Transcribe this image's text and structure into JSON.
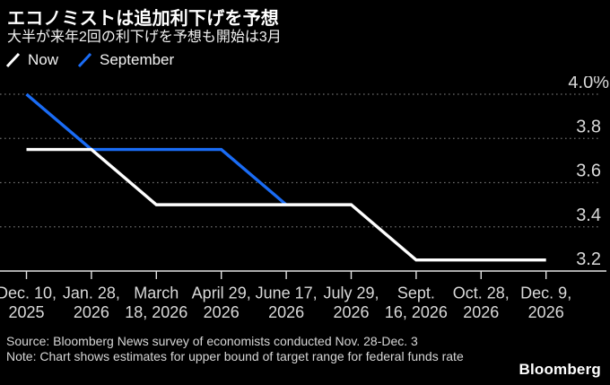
{
  "chart_data": {
    "type": "line",
    "title": "エコノミストは追加利下げを予想",
    "subtitle": "大半が来年2回の利下げを予想も開始は3月",
    "unit": "%",
    "x_categories": [
      [
        "Dec. 10,",
        "2025"
      ],
      [
        "Jan. 28,",
        "2026"
      ],
      [
        "March",
        "18, 2026"
      ],
      [
        "April 29,",
        "2026"
      ],
      [
        "June 17,",
        "2026"
      ],
      [
        "July 29,",
        "2026"
      ],
      [
        "Sept.",
        "16, 2026"
      ],
      [
        "Oct. 28,",
        "2026"
      ],
      [
        "Dec. 9,",
        "2026"
      ]
    ],
    "series": [
      {
        "name": "Now",
        "color": "#ffffff",
        "values": [
          3.75,
          3.75,
          3.5,
          3.5,
          3.5,
          3.5,
          3.25,
          3.25,
          3.25
        ]
      },
      {
        "name": "September",
        "color": "#1a6cf5",
        "values": [
          4.0,
          3.75,
          3.75,
          3.75,
          3.5,
          null,
          null,
          null,
          null
        ]
      }
    ],
    "yticks": [
      {
        "value": 4.0,
        "label": "4.0%"
      },
      {
        "value": 3.8,
        "label": "3.8"
      },
      {
        "value": 3.6,
        "label": "3.6"
      },
      {
        "value": 3.4,
        "label": "3.4"
      },
      {
        "value": 3.2,
        "label": "3.2"
      }
    ],
    "ylim": [
      3.2,
      4.0
    ],
    "grid": "horizontal-dotted",
    "legend_position": "top-left",
    "colors": {
      "background": "#000000",
      "grid": "#6b6b6b",
      "axis": "#e3e3e3",
      "tick_labels": "#d9d9d9"
    }
  },
  "footer": {
    "source": "Source: Bloomberg News survey of economists conducted Nov. 28-Dec. 3",
    "note": "Note: Chart shows estimates for upper bound of target range for federal funds rate",
    "brand": "Bloomberg"
  }
}
